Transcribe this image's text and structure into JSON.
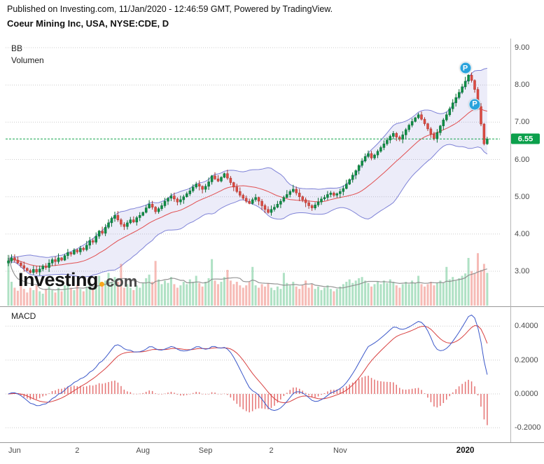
{
  "header": {
    "published": "Published on Investing.com, 11/Jan/2020 - 12:46:59 GMT, Powered by TradingView.",
    "title": "Coeur Mining Inc, USA, NYSE:CDE, D"
  },
  "price_panel": {
    "bb_label": "BB",
    "volume_label": "Volumen",
    "price_ticks": [
      "9.00",
      "8.00",
      "7.00",
      "6.00",
      "5.00",
      "4.00",
      "3.00"
    ],
    "last_price": "6.55",
    "markers": [
      {
        "label": "P",
        "index": 146,
        "price": 8.45
      },
      {
        "label": "P",
        "index": 149,
        "price": 7.48
      }
    ]
  },
  "macd_panel": {
    "label": "MACD",
    "ticks": [
      "0.4000",
      "0.2000",
      "0.0000",
      "-0.2000"
    ]
  },
  "x_axis": {
    "labels": [
      {
        "text": "Jun",
        "index": 2,
        "bold": false
      },
      {
        "text": "2",
        "index": 22,
        "bold": false
      },
      {
        "text": "Aug",
        "index": 43,
        "bold": false
      },
      {
        "text": "Sep",
        "index": 63,
        "bold": false
      },
      {
        "text": "2",
        "index": 84,
        "bold": false
      },
      {
        "text": "Nov",
        "index": 106,
        "bold": false
      },
      {
        "text": "2020",
        "index": 146,
        "bold": true
      }
    ]
  },
  "watermark": {
    "part1": "Investing",
    "part2": "com"
  },
  "colors": {
    "up": "#0f8f46",
    "up_border": "#0a6b34",
    "down": "#de4b42",
    "down_border": "#a83630",
    "bb_line": "#6a6fd0",
    "bb_fill": "rgba(106,111,208,0.13)",
    "bb_mid": "#e03e3e",
    "vol_up": "rgba(96,195,138,0.5)",
    "vol_down": "rgba(238,120,110,0.5)",
    "vol_ma": "#8a8a8a",
    "macd_line": "#3a57c9",
    "macd_signal": "#d84040",
    "macd_hist": "#e57373",
    "price_line": "#16a54f",
    "badge_bg": "#0ca04c",
    "marker_bg": "#2aa3dc",
    "grid": "#cccccc",
    "axis": "#b5b5b5",
    "divider": "#999999",
    "watermark_dot": "#f7a81b"
  },
  "chart_data": {
    "type": "candlestick",
    "title": "Coeur Mining Inc, USA, NYSE:CDE, D",
    "symbol": "NYSE:CDE",
    "interval": "D",
    "x_range": "Jun 2019 - Jan 2020",
    "series_names": [
      "CDE daily candles",
      "Bollinger Bands (20,2)",
      "Volume",
      "Volume MA(10)",
      "MACD (12,26,9)"
    ],
    "price_axis": {
      "ticks": [
        9,
        8,
        7,
        6,
        5,
        4,
        3
      ],
      "min": 2.2,
      "max": 9.3
    },
    "macd_axis": {
      "ticks": [
        0.4,
        0.2,
        0.0,
        -0.2
      ],
      "min": -0.3,
      "max": 0.52
    },
    "current_price": 6.55,
    "closes": [
      3.28,
      3.36,
      3.3,
      3.22,
      3.15,
      3.08,
      3.02,
      2.97,
      3.05,
      2.98,
      3.06,
      3.14,
      3.1,
      3.22,
      3.31,
      3.26,
      3.36,
      3.3,
      3.42,
      3.5,
      3.46,
      3.57,
      3.52,
      3.62,
      3.58,
      3.7,
      3.82,
      3.78,
      3.94,
      4.08,
      4.02,
      4.18,
      4.3,
      4.42,
      4.5,
      4.38,
      4.26,
      4.2,
      4.3,
      4.38,
      4.32,
      4.44,
      4.5,
      4.58,
      4.7,
      4.8,
      4.72,
      4.6,
      4.68,
      4.76,
      4.88,
      4.96,
      5.02,
      4.94,
      4.86,
      4.92,
      5.0,
      5.08,
      5.16,
      5.26,
      5.34,
      5.28,
      5.2,
      5.28,
      5.4,
      5.56,
      5.48,
      5.42,
      5.52,
      5.62,
      5.5,
      5.38,
      5.26,
      5.14,
      5.04,
      4.96,
      4.88,
      4.82,
      4.92,
      4.98,
      4.88,
      4.76,
      4.66,
      4.58,
      4.66,
      4.72,
      4.8,
      4.88,
      4.98,
      5.06,
      5.14,
      5.2,
      5.1,
      5.0,
      4.92,
      4.84,
      4.76,
      4.7,
      4.78,
      4.86,
      4.94,
      4.98,
      5.06,
      5.1,
      5.04,
      5.08,
      5.14,
      5.22,
      5.34,
      5.46,
      5.58,
      5.7,
      5.84,
      5.96,
      6.08,
      6.16,
      6.04,
      6.12,
      6.22,
      6.32,
      6.42,
      6.52,
      6.62,
      6.7,
      6.6,
      6.54,
      6.66,
      6.8,
      6.92,
      7.02,
      7.12,
      7.2,
      7.08,
      6.96,
      6.82,
      6.68,
      6.56,
      6.72,
      6.9,
      7.06,
      7.2,
      7.36,
      7.52,
      7.66,
      7.8,
      7.95,
      8.1,
      8.26,
      8.12,
      7.88,
      7.42,
      6.95,
      6.42,
      6.55
    ],
    "volumes": [
      85,
      40,
      30,
      25,
      35,
      28,
      22,
      30,
      26,
      34,
      24,
      20,
      28,
      32,
      26,
      22,
      30,
      24,
      34,
      40,
      30,
      26,
      35,
      28,
      24,
      32,
      38,
      28,
      44,
      50,
      36,
      42,
      55,
      40,
      48,
      40,
      70,
      30,
      36,
      30,
      26,
      34,
      30,
      38,
      46,
      52,
      40,
      75,
      44,
      36,
      42,
      38,
      48,
      36,
      30,
      34,
      40,
      36,
      44,
      40,
      50,
      38,
      32,
      40,
      46,
      78,
      42,
      36,
      40,
      48,
      60,
      42,
      36,
      40,
      34,
      30,
      34,
      40,
      65,
      34,
      30,
      36,
      32,
      38,
      30,
      26,
      32,
      28,
      55,
      38,
      34,
      40,
      32,
      28,
      34,
      42,
      30,
      36,
      28,
      32,
      26,
      30,
      34,
      28,
      24,
      28,
      32,
      36,
      40,
      44,
      38,
      42,
      46,
      48,
      42,
      38,
      32,
      36,
      40,
      36,
      42,
      38,
      44,
      40,
      34,
      30,
      36,
      40,
      36,
      42,
      38,
      50,
      36,
      32,
      36,
      40,
      34,
      38,
      42,
      38,
      65,
      44,
      48,
      42,
      46,
      50,
      54,
      80,
      58,
      54,
      88,
      60,
      70,
      55
    ],
    "indicators": {
      "bollinger": {
        "period": 20,
        "stddev": 2
      },
      "macd": {
        "fast": 12,
        "slow": 26,
        "signal": 9
      },
      "volume_ma": {
        "period": 10
      }
    }
  }
}
